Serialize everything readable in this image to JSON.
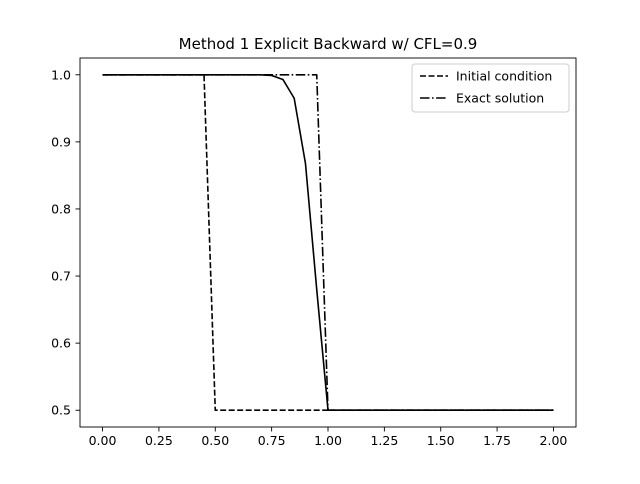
{
  "chart_data": {
    "type": "line",
    "title": "Method 1 Explicit Backward w/ CFL=0.9",
    "xlabel": "",
    "ylabel": "",
    "xlim": [
      -0.1,
      2.1
    ],
    "ylim": [
      0.475,
      1.025
    ],
    "xticks": [
      0.0,
      0.25,
      0.5,
      0.75,
      1.0,
      1.25,
      1.5,
      1.75,
      2.0
    ],
    "xtick_labels": [
      "0.00",
      "0.25",
      "0.50",
      "0.75",
      "1.00",
      "1.25",
      "1.50",
      "1.75",
      "2.00"
    ],
    "yticks": [
      0.5,
      0.6,
      0.7,
      0.8,
      0.9,
      1.0
    ],
    "ytick_labels": [
      "0.5",
      "0.6",
      "0.7",
      "0.8",
      "0.9",
      "1.0"
    ],
    "grid": false,
    "legend_position": "top-right",
    "series": [
      {
        "name": "Initial condition",
        "style": "dashed",
        "color": "#000000",
        "x": [
          0.0,
          0.45,
          0.5,
          2.0
        ],
        "y": [
          1.0,
          1.0,
          0.5,
          0.5
        ]
      },
      {
        "name": "Exact solution",
        "style": "dashdot",
        "color": "#000000",
        "x": [
          0.0,
          0.95,
          1.0,
          2.0
        ],
        "y": [
          1.0,
          1.0,
          0.5,
          0.5
        ]
      },
      {
        "style": "solid",
        "color": "#000000",
        "x": [
          0.0,
          0.7,
          0.75,
          0.8,
          0.85,
          0.9,
          0.95,
          1.0,
          2.0
        ],
        "y": [
          1.0,
          1.0,
          0.999,
          0.993,
          0.965,
          0.868,
          0.68,
          0.5,
          0.5
        ]
      }
    ]
  }
}
